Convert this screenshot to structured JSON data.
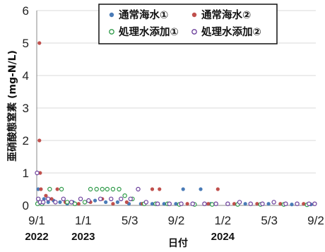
{
  "chart_data": {
    "type": "scatter",
    "title": "",
    "xlabel": "日付",
    "ylabel": "亜硝酸態窒素 (mg-N/L)",
    "ylim": [
      0,
      6
    ],
    "yticks": [
      "0",
      "1",
      "2",
      "3",
      "4",
      "5",
      "6"
    ],
    "xlim": [
      "2022-09-01",
      "2024-09-02"
    ],
    "xticks": [
      {
        "date": "2022-09-01",
        "label": "9/1"
      },
      {
        "date": "2023-01-01",
        "label": "1/1"
      },
      {
        "date": "2023-05-03",
        "label": "5/3"
      },
      {
        "date": "2023-09-02",
        "label": "9/2"
      },
      {
        "date": "2024-01-02",
        "label": "1/2"
      },
      {
        "date": "2024-05-03",
        "label": "5/3"
      },
      {
        "date": "2024-09-02",
        "label": "9/2"
      }
    ],
    "year_labels": [
      {
        "date": "2022-09-01",
        "label": "2022"
      },
      {
        "date": "2023-01-01",
        "label": "2023"
      },
      {
        "date": "2024-01-02",
        "label": "2024"
      }
    ],
    "legend_position": "top-right",
    "series": [
      {
        "name": "通常海水①",
        "color": "#4a7bb7",
        "marker": "filled",
        "points": [
          [
            "2022-09-05",
            0.5
          ],
          [
            "2022-09-12",
            0.1
          ],
          [
            "2022-09-20",
            0.2
          ],
          [
            "2022-10-01",
            0.1
          ],
          [
            "2022-10-15",
            0.15
          ],
          [
            "2022-11-01",
            0.1
          ],
          [
            "2022-11-20",
            0.05
          ],
          [
            "2022-12-05",
            0.1
          ],
          [
            "2023-01-05",
            0.1
          ],
          [
            "2023-02-01",
            0.15
          ],
          [
            "2023-03-01",
            0.1
          ],
          [
            "2023-04-01",
            0.1
          ],
          [
            "2023-05-01",
            0.05
          ],
          [
            "2023-06-01",
            0.05
          ],
          [
            "2023-07-01",
            0.05
          ],
          [
            "2023-08-01",
            0.05
          ],
          [
            "2023-09-01",
            0.05
          ],
          [
            "2023-09-20",
            0.5
          ],
          [
            "2023-10-15",
            0.05
          ],
          [
            "2023-11-05",
            0.5
          ],
          [
            "2023-12-01",
            0.05
          ],
          [
            "2024-01-15",
            0.05
          ],
          [
            "2024-03-01",
            0.05
          ],
          [
            "2024-05-01",
            0.05
          ],
          [
            "2024-07-01",
            0.03
          ],
          [
            "2024-08-20",
            0.03
          ]
        ]
      },
      {
        "name": "通常海水②",
        "color": "#c0504d",
        "marker": "filled",
        "points": [
          [
            "2022-09-08",
            5.0
          ],
          [
            "2022-09-08",
            2.0
          ],
          [
            "2022-09-10",
            1.0
          ],
          [
            "2022-09-12",
            0.5
          ],
          [
            "2022-09-25",
            0.3
          ],
          [
            "2022-10-10",
            0.2
          ],
          [
            "2022-10-25",
            0.5
          ],
          [
            "2022-11-15",
            0.1
          ],
          [
            "2022-12-20",
            0.05
          ],
          [
            "2023-01-20",
            0.1
          ],
          [
            "2023-02-20",
            0.2
          ],
          [
            "2023-03-20",
            0.05
          ],
          [
            "2023-04-25",
            0.1
          ],
          [
            "2023-06-05",
            0.05
          ],
          [
            "2023-07-01",
            0.5
          ],
          [
            "2023-07-20",
            0.5
          ],
          [
            "2023-08-15",
            0.05
          ],
          [
            "2023-10-01",
            0.05
          ],
          [
            "2023-11-25",
            0.05
          ],
          [
            "2023-12-20",
            0.5
          ],
          [
            "2024-02-01",
            0.05
          ],
          [
            "2024-04-01",
            0.05
          ],
          [
            "2024-06-01",
            0.05
          ],
          [
            "2024-08-01",
            0.05
          ]
        ]
      },
      {
        "name": "処理水添加①",
        "color": "#2e9a48",
        "marker": "open",
        "points": [
          [
            "2022-09-03",
            0.05
          ],
          [
            "2022-09-15",
            0.05
          ],
          [
            "2022-10-05",
            0.5
          ],
          [
            "2022-11-05",
            0.5
          ],
          [
            "2022-11-20",
            0.1
          ],
          [
            "2022-12-10",
            0.05
          ],
          [
            "2023-01-05",
            0.1
          ],
          [
            "2023-01-20",
            0.5
          ],
          [
            "2023-02-05",
            0.5
          ],
          [
            "2023-02-20",
            0.5
          ],
          [
            "2023-03-05",
            0.5
          ],
          [
            "2023-03-20",
            0.5
          ],
          [
            "2023-04-05",
            0.5
          ],
          [
            "2023-04-20",
            0.3
          ],
          [
            "2023-05-10",
            0.2
          ],
          [
            "2023-06-10",
            0.05
          ],
          [
            "2023-07-10",
            0.05
          ],
          [
            "2023-08-10",
            0.05
          ],
          [
            "2023-09-10",
            0.03
          ],
          [
            "2023-10-20",
            0.03
          ],
          [
            "2023-12-05",
            0.03
          ],
          [
            "2024-02-10",
            0.03
          ],
          [
            "2024-04-10",
            0.03
          ],
          [
            "2024-06-10",
            0.03
          ],
          [
            "2024-08-10",
            0.02
          ]
        ]
      },
      {
        "name": "処理水添加②",
        "color": "#6a3d9a",
        "marker": "open",
        "points": [
          [
            "2022-09-02",
            1.0
          ],
          [
            "2022-09-05",
            0.2
          ],
          [
            "2022-09-10",
            0.1
          ],
          [
            "2022-09-18",
            0.1
          ],
          [
            "2022-10-01",
            0.2
          ],
          [
            "2022-10-20",
            0.1
          ],
          [
            "2022-11-10",
            0.2
          ],
          [
            "2022-12-01",
            0.1
          ],
          [
            "2022-12-25",
            0.2
          ],
          [
            "2023-01-15",
            0.15
          ],
          [
            "2023-02-15",
            0.2
          ],
          [
            "2023-03-15",
            0.2
          ],
          [
            "2023-04-10",
            0.2
          ],
          [
            "2023-05-05",
            0.2
          ],
          [
            "2023-05-25",
            0.5
          ],
          [
            "2023-06-15",
            0.1
          ],
          [
            "2023-07-15",
            0.05
          ],
          [
            "2023-08-15",
            0.05
          ],
          [
            "2023-09-15",
            0.05
          ],
          [
            "2023-10-15",
            0.05
          ],
          [
            "2023-11-15",
            0.05
          ],
          [
            "2023-12-15",
            0.05
          ],
          [
            "2024-01-15",
            0.05
          ],
          [
            "2024-02-15",
            0.1
          ],
          [
            "2024-03-15",
            0.05
          ],
          [
            "2024-04-15",
            0.05
          ],
          [
            "2024-05-15",
            0.1
          ],
          [
            "2024-06-15",
            0.05
          ],
          [
            "2024-07-15",
            0.05
          ],
          [
            "2024-08-15",
            0.05
          ],
          [
            "2024-08-30",
            0.05
          ]
        ]
      }
    ]
  }
}
